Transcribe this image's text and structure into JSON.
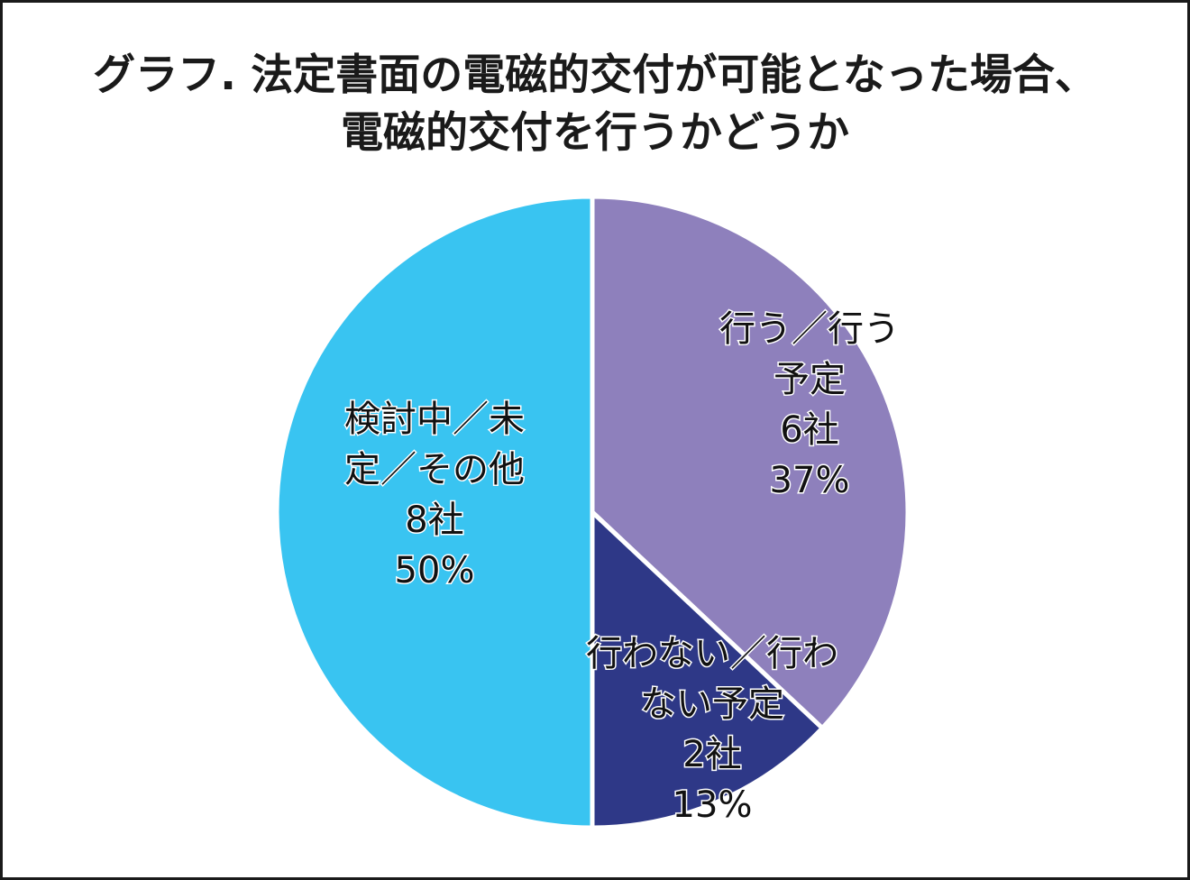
{
  "chart_data": {
    "type": "pie",
    "title_lines": [
      "グラフ. 法定書面の電磁的交付が可能となった場合、",
      "電磁的交付を行うかどうか"
    ],
    "slices": [
      {
        "label_lines": [
          "行う／行う",
          "予定"
        ],
        "count_label": "6社",
        "percent_label": "37%",
        "value": 37,
        "count": 6,
        "color": "#8e80bc"
      },
      {
        "label_lines": [
          "行わない／行わ",
          "ない予定"
        ],
        "count_label": "2社",
        "percent_label": "13%",
        "value": 13,
        "count": 2,
        "color": "#2e3887"
      },
      {
        "label_lines": [
          "検討中／未",
          "定／その他"
        ],
        "count_label": "8社",
        "percent_label": "50%",
        "value": 50,
        "count": 8,
        "color": "#39c4f1"
      }
    ],
    "start": "12 o'clock",
    "direction": "clockwise",
    "legend": "none"
  }
}
